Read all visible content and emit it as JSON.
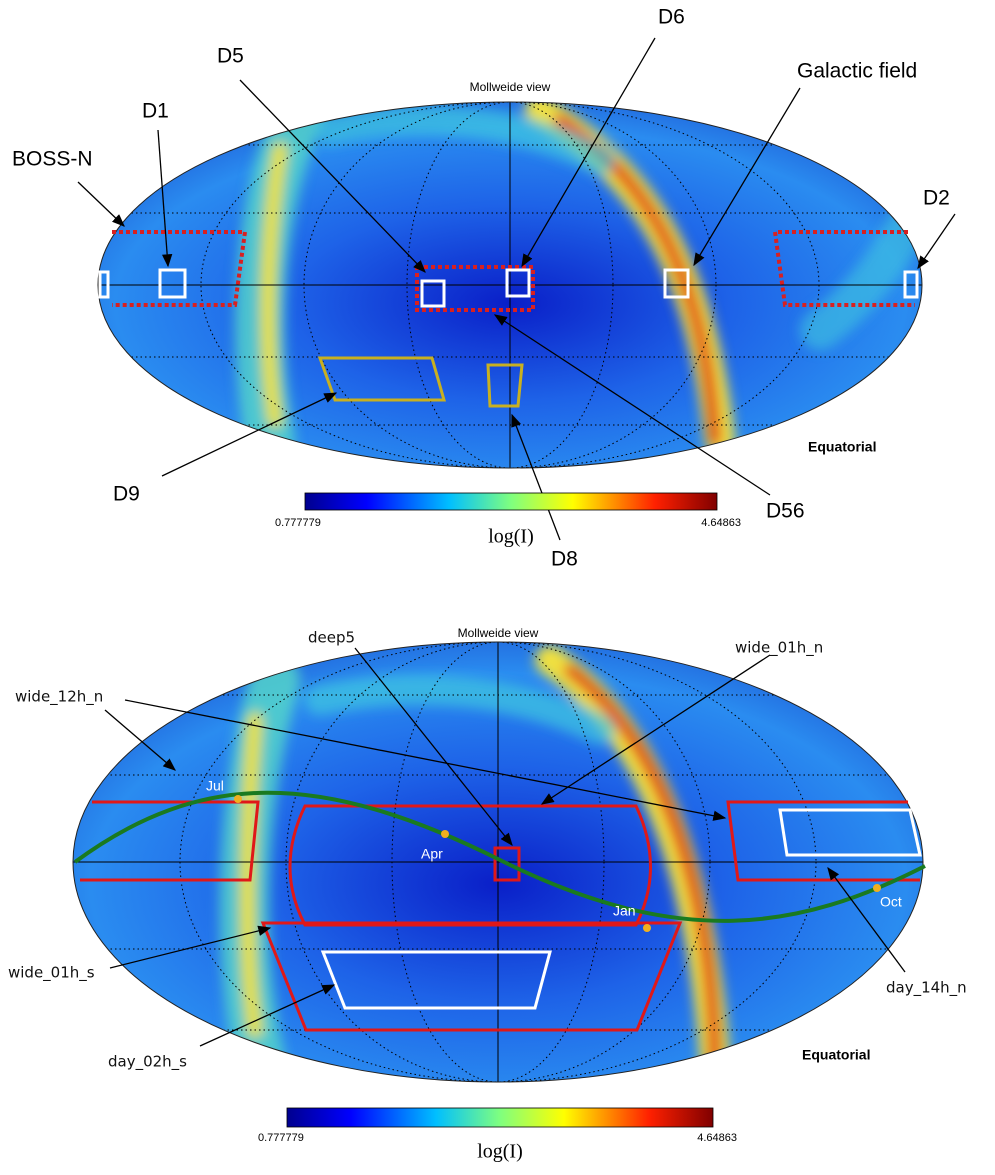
{
  "panels": [
    {
      "title": "Mollweide view",
      "frame": "Equatorial",
      "colorbar": {
        "min": "0.777779",
        "max": "4.64863",
        "label": "log(I)"
      },
      "annotations": [
        "BOSS-N",
        "D1",
        "D5",
        "D6",
        "Galactic field",
        "D2",
        "D9",
        "D8",
        "D56"
      ]
    },
    {
      "title": "Mollweide view",
      "frame": "Equatorial",
      "colorbar": {
        "min": "0.777779",
        "max": "4.64863",
        "label": "log(I)"
      },
      "annotations": [
        "deep5",
        "wide_01h_n",
        "wide_12h_n",
        "wide_01h_s",
        "day_02h_s",
        "day_14h_n"
      ],
      "months": [
        "Jul",
        "Apr",
        "Jan",
        "Oct"
      ]
    }
  ]
}
